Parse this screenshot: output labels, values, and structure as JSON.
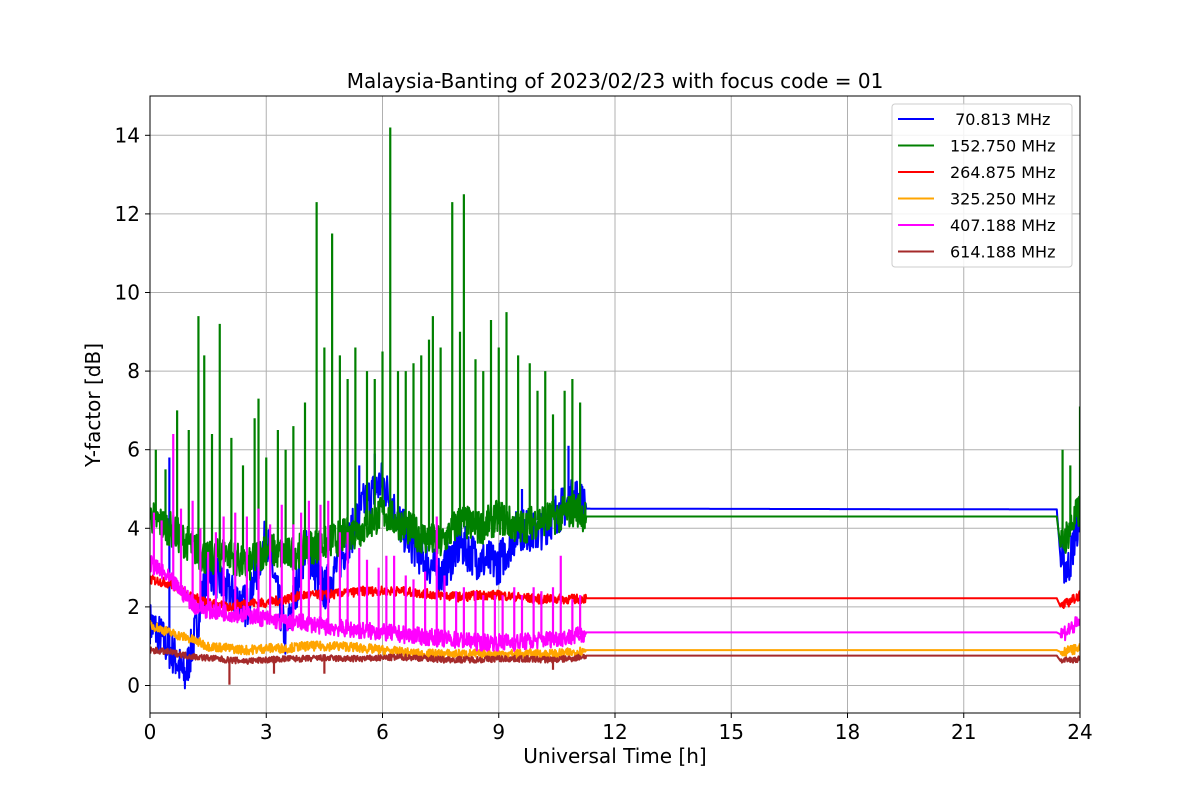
{
  "chart_data": {
    "type": "line",
    "title": "Malaysia-Banting of 2023/02/23 with focus code = 01",
    "xlabel": "Universal Time [h]",
    "ylabel": "Y-factor [dB]",
    "xlim": [
      0,
      24
    ],
    "ylim": [
      -0.7,
      15
    ],
    "x_ticks": [
      0,
      3,
      6,
      9,
      12,
      15,
      18,
      21,
      24
    ],
    "y_ticks": [
      0,
      2,
      4,
      6,
      8,
      10,
      12,
      14
    ],
    "grid": true,
    "legend_position": "top-right",
    "observing_periods_h": [
      [
        0,
        11.25
      ],
      [
        23.5,
        24
      ]
    ],
    "series": [
      {
        "name": " 70.813 MHz",
        "color": "#0000ff",
        "points": [
          [
            0,
            1.6
          ],
          [
            0.3,
            1.2
          ],
          [
            0.6,
            0.8
          ],
          [
            0.9,
            0.2
          ],
          [
            1.2,
            1.5
          ],
          [
            1.5,
            3.0
          ],
          [
            2.0,
            2.4
          ],
          [
            2.5,
            2.0
          ],
          [
            3.0,
            3.8
          ],
          [
            3.5,
            1.2
          ],
          [
            4.0,
            3.5
          ],
          [
            4.5,
            2.4
          ],
          [
            5.0,
            3.4
          ],
          [
            5.5,
            4.6
          ],
          [
            6.0,
            5.2
          ],
          [
            6.5,
            4.0
          ],
          [
            7.0,
            3.3
          ],
          [
            7.5,
            2.8
          ],
          [
            8.0,
            3.6
          ],
          [
            8.5,
            3.2
          ],
          [
            9.0,
            3.1
          ],
          [
            9.5,
            4.0
          ],
          [
            10.0,
            3.9
          ],
          [
            10.5,
            4.4
          ],
          [
            11.0,
            4.8
          ],
          [
            11.25,
            4.5
          ],
          [
            23.4,
            4.48
          ],
          [
            23.5,
            3.2
          ],
          [
            23.7,
            3.0
          ],
          [
            24.0,
            4.4
          ]
        ],
        "spikes": [
          [
            0.5,
            5.8
          ],
          [
            5.4,
            5.6
          ],
          [
            5.8,
            5.9
          ],
          [
            9.6,
            5.0
          ],
          [
            10.4,
            5.0
          ],
          [
            10.8,
            6.1
          ]
        ]
      },
      {
        "name": "152.750 MHz",
        "color": "#008000",
        "baseline": [
          [
            0,
            4.3
          ],
          [
            0.5,
            4.0
          ],
          [
            1.0,
            3.6
          ],
          [
            1.5,
            3.2
          ],
          [
            2.0,
            3.4
          ],
          [
            2.5,
            3.0
          ],
          [
            3.0,
            3.5
          ],
          [
            3.5,
            3.3
          ],
          [
            4.0,
            3.5
          ],
          [
            4.5,
            3.6
          ],
          [
            5.0,
            3.8
          ],
          [
            5.5,
            4.0
          ],
          [
            6.0,
            4.4
          ],
          [
            6.5,
            4.1
          ],
          [
            7.0,
            3.8
          ],
          [
            7.5,
            3.6
          ],
          [
            8.0,
            4.2
          ],
          [
            8.5,
            4.0
          ],
          [
            9.0,
            4.3
          ],
          [
            9.5,
            4.0
          ],
          [
            10.0,
            4.2
          ],
          [
            10.5,
            4.3
          ],
          [
            11.0,
            4.5
          ],
          [
            11.25,
            4.3
          ],
          [
            23.4,
            4.3
          ],
          [
            23.5,
            3.5
          ],
          [
            24.0,
            4.5
          ]
        ],
        "spikes": [
          [
            0.15,
            6.0
          ],
          [
            0.4,
            5.5
          ],
          [
            0.7,
            7.0
          ],
          [
            1.0,
            6.5
          ],
          [
            1.25,
            9.4
          ],
          [
            1.4,
            8.4
          ],
          [
            1.6,
            6.4
          ],
          [
            1.8,
            9.2
          ],
          [
            2.1,
            6.3
          ],
          [
            2.4,
            5.6
          ],
          [
            2.7,
            6.8
          ],
          [
            2.8,
            7.3
          ],
          [
            3.0,
            5.8
          ],
          [
            3.3,
            6.5
          ],
          [
            3.5,
            6.0
          ],
          [
            3.7,
            6.6
          ],
          [
            4.0,
            7.2
          ],
          [
            4.3,
            12.3
          ],
          [
            4.5,
            8.6
          ],
          [
            4.7,
            11.5
          ],
          [
            4.9,
            8.4
          ],
          [
            5.1,
            7.8
          ],
          [
            5.3,
            8.6
          ],
          [
            5.6,
            8.0
          ],
          [
            5.8,
            7.8
          ],
          [
            6.0,
            8.5
          ],
          [
            6.2,
            14.2
          ],
          [
            6.4,
            8.0
          ],
          [
            6.6,
            8.0
          ],
          [
            6.8,
            8.2
          ],
          [
            7.0,
            8.4
          ],
          [
            7.2,
            8.8
          ],
          [
            7.3,
            9.4
          ],
          [
            7.5,
            8.6
          ],
          [
            7.8,
            12.3
          ],
          [
            8.0,
            9.0
          ],
          [
            8.1,
            12.5
          ],
          [
            8.4,
            8.3
          ],
          [
            8.6,
            8.0
          ],
          [
            8.8,
            9.3
          ],
          [
            9.0,
            8.6
          ],
          [
            9.2,
            9.5
          ],
          [
            9.5,
            8.4
          ],
          [
            9.8,
            8.2
          ],
          [
            10.0,
            7.5
          ],
          [
            10.2,
            8.0
          ],
          [
            10.4,
            6.9
          ],
          [
            10.7,
            7.5
          ],
          [
            10.9,
            7.8
          ],
          [
            11.1,
            7.2
          ],
          [
            23.55,
            6.0
          ],
          [
            23.75,
            5.6
          ],
          [
            24.0,
            7.1
          ]
        ]
      },
      {
        "name": "264.875 MHz",
        "color": "#ff0000",
        "points": [
          [
            0,
            2.7
          ],
          [
            0.5,
            2.6
          ],
          [
            1.0,
            2.3
          ],
          [
            1.5,
            2.1
          ],
          [
            2.0,
            2.0
          ],
          [
            2.5,
            2.1
          ],
          [
            3.0,
            2.1
          ],
          [
            3.5,
            2.2
          ],
          [
            4.0,
            2.3
          ],
          [
            4.5,
            2.3
          ],
          [
            5.0,
            2.35
          ],
          [
            5.5,
            2.4
          ],
          [
            6.0,
            2.4
          ],
          [
            6.5,
            2.4
          ],
          [
            7.0,
            2.35
          ],
          [
            7.5,
            2.3
          ],
          [
            8.0,
            2.25
          ],
          [
            8.5,
            2.3
          ],
          [
            9.0,
            2.3
          ],
          [
            9.5,
            2.25
          ],
          [
            10.0,
            2.2
          ],
          [
            10.5,
            2.2
          ],
          [
            11.0,
            2.2
          ],
          [
            11.25,
            2.22
          ],
          [
            23.4,
            2.22
          ],
          [
            23.5,
            2.0
          ],
          [
            24.0,
            2.3
          ]
        ]
      },
      {
        "name": "325.250 MHz",
        "color": "#ffa500",
        "points": [
          [
            0,
            1.55
          ],
          [
            0.5,
            1.35
          ],
          [
            1.0,
            1.2
          ],
          [
            1.5,
            1.0
          ],
          [
            2.0,
            0.95
          ],
          [
            2.5,
            0.9
          ],
          [
            3.0,
            0.95
          ],
          [
            3.5,
            0.95
          ],
          [
            4.0,
            1.0
          ],
          [
            4.5,
            1.0
          ],
          [
            5.0,
            1.0
          ],
          [
            5.5,
            0.95
          ],
          [
            6.0,
            0.9
          ],
          [
            6.5,
            0.85
          ],
          [
            7.0,
            0.8
          ],
          [
            7.5,
            0.8
          ],
          [
            8.0,
            0.8
          ],
          [
            8.5,
            0.8
          ],
          [
            9.0,
            0.8
          ],
          [
            9.5,
            0.8
          ],
          [
            10.0,
            0.8
          ],
          [
            10.5,
            0.8
          ],
          [
            11.0,
            0.85
          ],
          [
            11.25,
            0.9
          ],
          [
            23.4,
            0.9
          ],
          [
            23.5,
            0.85
          ],
          [
            24.0,
            0.95
          ]
        ]
      },
      {
        "name": "407.188 MHz",
        "color": "#ff00ff",
        "baseline": [
          [
            0,
            3.1
          ],
          [
            0.4,
            2.8
          ],
          [
            0.8,
            2.4
          ],
          [
            1.2,
            2.0
          ],
          [
            1.6,
            1.9
          ],
          [
            2.0,
            1.85
          ],
          [
            2.5,
            1.8
          ],
          [
            3.0,
            1.7
          ],
          [
            3.5,
            1.6
          ],
          [
            4.0,
            1.6
          ],
          [
            4.5,
            1.5
          ],
          [
            5.0,
            1.45
          ],
          [
            5.5,
            1.4
          ],
          [
            6.0,
            1.35
          ],
          [
            6.5,
            1.3
          ],
          [
            7.0,
            1.25
          ],
          [
            7.5,
            1.2
          ],
          [
            8.0,
            1.15
          ],
          [
            8.5,
            1.1
          ],
          [
            9.0,
            1.1
          ],
          [
            9.5,
            1.1
          ],
          [
            10.0,
            1.15
          ],
          [
            10.5,
            1.2
          ],
          [
            11.0,
            1.25
          ],
          [
            11.25,
            1.35
          ],
          [
            23.4,
            1.35
          ],
          [
            23.5,
            1.3
          ],
          [
            24.0,
            1.6
          ]
        ],
        "spikes": [
          [
            0.1,
            4.4
          ],
          [
            0.3,
            4.2
          ],
          [
            0.6,
            6.4
          ],
          [
            0.8,
            4.5
          ],
          [
            1.1,
            4.7
          ],
          [
            1.3,
            4.0
          ],
          [
            1.5,
            3.4
          ],
          [
            1.7,
            3.9
          ],
          [
            1.9,
            4.3
          ],
          [
            2.2,
            4.4
          ],
          [
            2.5,
            4.3
          ],
          [
            2.8,
            4.5
          ],
          [
            3.1,
            4.1
          ],
          [
            3.4,
            4.6
          ],
          [
            3.7,
            4.1
          ],
          [
            3.9,
            4.4
          ],
          [
            4.1,
            4.7
          ],
          [
            4.4,
            4.6
          ],
          [
            4.6,
            4.7
          ],
          [
            4.9,
            3.9
          ],
          [
            5.1,
            3.9
          ],
          [
            5.4,
            3.5
          ],
          [
            5.6,
            3.2
          ],
          [
            5.9,
            3.0
          ],
          [
            6.1,
            3.3
          ],
          [
            6.3,
            3.3
          ],
          [
            6.6,
            2.8
          ],
          [
            6.8,
            2.7
          ],
          [
            7.1,
            2.9
          ],
          [
            7.4,
            4.3
          ],
          [
            7.6,
            2.8
          ],
          [
            7.9,
            2.4
          ],
          [
            8.1,
            2.5
          ],
          [
            8.4,
            2.4
          ],
          [
            8.6,
            2.3
          ],
          [
            8.9,
            2.3
          ],
          [
            9.1,
            2.3
          ],
          [
            9.4,
            2.5
          ],
          [
            9.6,
            2.3
          ],
          [
            9.9,
            2.5
          ],
          [
            10.1,
            2.4
          ],
          [
            10.4,
            2.5
          ],
          [
            10.6,
            3.3
          ],
          [
            10.9,
            2.2
          ],
          [
            11.1,
            2.3
          ]
        ]
      },
      {
        "name": "614.188 MHz",
        "color": "#a52a2a",
        "points": [
          [
            0,
            0.9
          ],
          [
            0.5,
            0.85
          ],
          [
            1.0,
            0.75
          ],
          [
            1.5,
            0.7
          ],
          [
            2.0,
            0.65
          ],
          [
            2.5,
            0.62
          ],
          [
            3.0,
            0.65
          ],
          [
            3.5,
            0.68
          ],
          [
            4.0,
            0.68
          ],
          [
            4.5,
            0.7
          ],
          [
            5.0,
            0.68
          ],
          [
            5.5,
            0.68
          ],
          [
            6.0,
            0.7
          ],
          [
            6.5,
            0.72
          ],
          [
            7.0,
            0.7
          ],
          [
            7.5,
            0.66
          ],
          [
            8.0,
            0.66
          ],
          [
            8.5,
            0.66
          ],
          [
            9.0,
            0.68
          ],
          [
            9.5,
            0.68
          ],
          [
            10.0,
            0.66
          ],
          [
            10.5,
            0.66
          ],
          [
            11.0,
            0.7
          ],
          [
            11.25,
            0.76
          ],
          [
            23.4,
            0.76
          ],
          [
            23.5,
            0.62
          ],
          [
            24.0,
            0.68
          ]
        ],
        "spikes": [
          [
            2.05,
            0.02
          ],
          [
            3.2,
            0.3
          ],
          [
            4.5,
            0.3
          ],
          [
            10.4,
            0.4
          ]
        ]
      }
    ]
  }
}
